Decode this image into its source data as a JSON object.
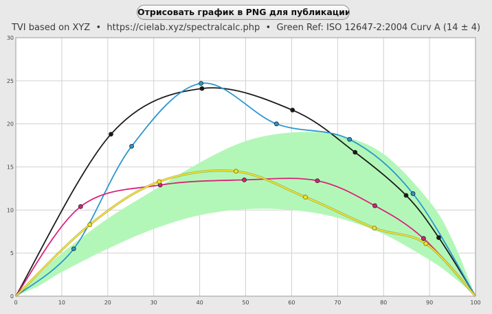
{
  "toolbar": {
    "export_label": "Отрисовать график в PNG для публикации"
  },
  "subtitle": {
    "part1": "TVI based on XYZ",
    "sep": "•",
    "part2": "https://cielab.xyz/spectralcalc.php",
    "part3": "Green Ref: ISO 12647-2:2004 Curv A (14 ± 4)"
  },
  "colors": {
    "background": "#e9e9e9",
    "plot_background": "#ffffff",
    "grid": "#d0d0d0",
    "band": "#b3f7b8",
    "black": "#1a1a1a",
    "cyan": "#2a96cf",
    "magenta": "#d8237a",
    "yellow": "#f2e22a"
  },
  "chart_data": {
    "type": "line",
    "xlim": [
      0,
      100
    ],
    "ylim": [
      0,
      30
    ],
    "x_ticks": [
      "0",
      "10",
      "20",
      "30",
      "40",
      "50",
      "60",
      "70",
      "80",
      "90",
      "100"
    ],
    "y_ticks": [
      "0",
      "5",
      "10",
      "15",
      "20",
      "25",
      "30"
    ],
    "grid": true,
    "reference_band": {
      "x": [
        0,
        5,
        10,
        20,
        30,
        40,
        50,
        60,
        70,
        80,
        90,
        95,
        100
      ],
      "lower": [
        0,
        1.2,
        2.8,
        5.5,
        7.8,
        9.4,
        10.1,
        10.0,
        9.1,
        7.2,
        4.2,
        2.3,
        0
      ],
      "upper": [
        0,
        2.5,
        5,
        9,
        12.3,
        15.5,
        18.0,
        19.0,
        18.7,
        16.5,
        11,
        6.5,
        0
      ]
    },
    "series": [
      {
        "color_key": "black",
        "x": [
          0,
          20.7,
          40.5,
          60.2,
          73.8,
          84.9,
          92.0,
          100
        ],
        "y": [
          0,
          18.8,
          24.1,
          21.6,
          16.7,
          11.7,
          6.8,
          0
        ]
      },
      {
        "color_key": "cyan",
        "x": [
          0,
          12.6,
          25.2,
          40.3,
          56.7,
          72.6,
          86.4,
          100
        ],
        "y": [
          0,
          5.5,
          17.4,
          24.7,
          20.0,
          18.2,
          11.9,
          0
        ]
      },
      {
        "color_key": "magenta",
        "x": [
          0,
          14.1,
          31.4,
          49.7,
          65.6,
          78.1,
          88.7,
          100
        ],
        "y": [
          0,
          10.4,
          12.9,
          13.5,
          13.4,
          10.5,
          6.7,
          0
        ]
      },
      {
        "color_key": "yellow",
        "x": [
          0,
          16.1,
          31.2,
          47.9,
          63.0,
          78.0,
          89.2,
          100
        ],
        "y": [
          0,
          8.3,
          13.3,
          14.5,
          11.5,
          7.9,
          6.1,
          0
        ]
      }
    ]
  }
}
